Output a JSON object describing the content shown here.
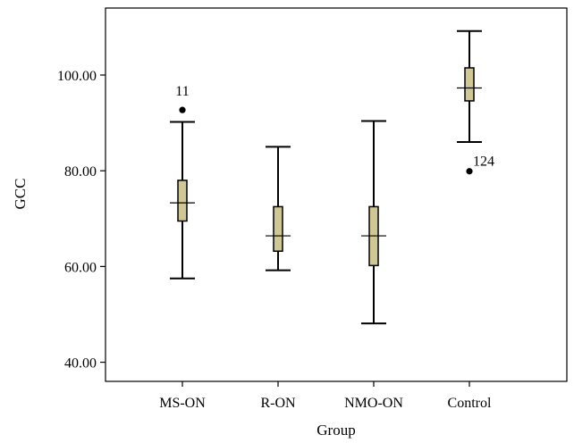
{
  "chart_data": {
    "type": "box",
    "xlabel": "Group",
    "ylabel": "GCC",
    "ylim": [
      36.0,
      114.0
    ],
    "yticks": [
      40.0,
      60.0,
      80.0,
      100.0
    ],
    "ytick_labels": [
      "40.00",
      "60.00",
      "80.00",
      "100.00"
    ],
    "categories": [
      "MS-ON",
      "R-ON",
      "NMO-ON",
      "Control"
    ],
    "box_color": "#cfc796",
    "grid": false,
    "boxes": [
      {
        "category": "MS-ON",
        "whisker_low": 57.5,
        "q1": 69.5,
        "median": 73.3,
        "q3": 78.0,
        "whisker_high": 90.2
      },
      {
        "category": "R-ON",
        "whisker_low": 59.2,
        "q1": 63.2,
        "median": 66.4,
        "q3": 72.5,
        "whisker_high": 85.0
      },
      {
        "category": "NMO-ON",
        "whisker_low": 48.1,
        "q1": 60.2,
        "median": 66.4,
        "q3": 72.5,
        "whisker_high": 90.4
      },
      {
        "category": "Control",
        "whisker_low": 86.0,
        "q1": 94.6,
        "median": 97.3,
        "q3": 101.5,
        "whisker_high": 109.2
      }
    ],
    "outliers": [
      {
        "category": "MS-ON",
        "value": 92.7,
        "label": "11"
      },
      {
        "category": "Control",
        "value": 79.9,
        "label": "124"
      }
    ]
  }
}
